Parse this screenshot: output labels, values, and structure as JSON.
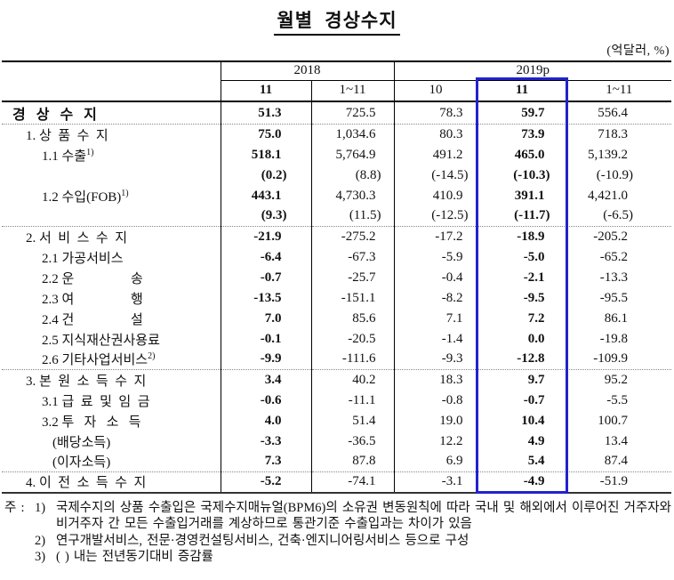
{
  "title": "월별 경상수지",
  "unit_label": "(억달러, %)",
  "colors": {
    "highlight_box": "#2222cc",
    "text": "#111111"
  },
  "table": {
    "col_groups": [
      {
        "label": "2018",
        "cols": [
          "11",
          "1~11"
        ]
      },
      {
        "label": "2019p",
        "cols": [
          "10",
          "11",
          "1~11"
        ]
      }
    ],
    "highlighted_column": "2019p 11",
    "rows": [
      {
        "label": "경   상   수   지",
        "sup": "",
        "indent": 0,
        "bold": true,
        "divider": false,
        "values": [
          "51.3",
          "725.5",
          "78.3",
          "59.7",
          "556.4"
        ]
      },
      {
        "label": "1. 상  품  수  지",
        "sup": "",
        "indent": 1,
        "bold": false,
        "divider": true,
        "values": [
          "75.0",
          "1,034.6",
          "80.3",
          "73.9",
          "718.3"
        ]
      },
      {
        "label": "1.1 수출",
        "sup": "1)",
        "indent": 2,
        "bold": false,
        "divider": false,
        "values": [
          "518.1",
          "5,764.9",
          "491.2",
          "465.0",
          "5,139.2"
        ]
      },
      {
        "label": "",
        "sup": "",
        "indent": 2,
        "bold": false,
        "divider": false,
        "values": [
          "(0.2)",
          "(8.8)",
          "(-14.5)",
          "(-10.3)",
          "(-10.9)"
        ]
      },
      {
        "label": "1.2 수입(FOB)",
        "sup": "1)",
        "indent": 2,
        "bold": false,
        "divider": false,
        "values": [
          "443.1",
          "4,730.3",
          "410.9",
          "391.1",
          "4,421.0"
        ]
      },
      {
        "label": "",
        "sup": "",
        "indent": 2,
        "bold": false,
        "divider": false,
        "values": [
          "(9.3)",
          "(11.5)",
          "(-12.5)",
          "(-11.7)",
          "(-6.5)"
        ]
      },
      {
        "label": "2. 서  비  스  수  지",
        "sup": "",
        "indent": 1,
        "bold": false,
        "divider": true,
        "values": [
          "-21.9",
          "-275.2",
          "-17.2",
          "-18.9",
          "-205.2"
        ]
      },
      {
        "label": "2.1 가공서비스",
        "sup": "",
        "indent": 2,
        "bold": false,
        "divider": false,
        "values": [
          "-6.4",
          "-67.3",
          "-5.9",
          "-5.0",
          "-65.2"
        ]
      },
      {
        "label": "2.2 운                 송",
        "sup": "",
        "indent": 2,
        "bold": false,
        "divider": false,
        "values": [
          "-0.7",
          "-25.7",
          "-0.4",
          "-2.1",
          "-13.3"
        ]
      },
      {
        "label": "2.3 여                 행",
        "sup": "",
        "indent": 2,
        "bold": false,
        "divider": false,
        "values": [
          "-13.5",
          "-151.1",
          "-8.2",
          "-9.5",
          "-95.5"
        ]
      },
      {
        "label": "2.4 건                 설",
        "sup": "",
        "indent": 2,
        "bold": false,
        "divider": false,
        "values": [
          "7.0",
          "85.6",
          "7.1",
          "7.2",
          "86.1"
        ]
      },
      {
        "label": "2.5 지식재산권사용료",
        "sup": "",
        "indent": 2,
        "bold": false,
        "divider": false,
        "values": [
          "-0.1",
          "-20.5",
          "-1.4",
          "0.0",
          "-19.8"
        ]
      },
      {
        "label": "2.6 기타사업서비스",
        "sup": "2)",
        "indent": 2,
        "bold": false,
        "divider": false,
        "values": [
          "-9.9",
          "-111.6",
          "-9.3",
          "-12.8",
          "-109.9"
        ]
      },
      {
        "label": "3. 본  원  소  득  수  지",
        "sup": "",
        "indent": 1,
        "bold": false,
        "divider": true,
        "values": [
          "3.4",
          "40.2",
          "18.3",
          "9.7",
          "95.2"
        ]
      },
      {
        "label": "3.1 급  료  및  임  금",
        "sup": "",
        "indent": 2,
        "bold": false,
        "divider": false,
        "values": [
          "-0.6",
          "-11.1",
          "-0.8",
          "-0.7",
          "-5.5"
        ]
      },
      {
        "label": "3.2 투   자   소   득",
        "sup": "",
        "indent": 2,
        "bold": false,
        "divider": false,
        "values": [
          "4.0",
          "51.4",
          "19.0",
          "10.4",
          "100.7"
        ]
      },
      {
        "label": "(배당소득)",
        "sup": "",
        "indent": 3,
        "bold": false,
        "divider": false,
        "values": [
          "-3.3",
          "-36.5",
          "12.2",
          "4.9",
          "13.4"
        ]
      },
      {
        "label": "(이자소득)",
        "sup": "",
        "indent": 3,
        "bold": false,
        "divider": false,
        "values": [
          "7.3",
          "87.8",
          "6.9",
          "5.4",
          "87.4"
        ]
      },
      {
        "label": "4. 이  전  소  득  수  지",
        "sup": "",
        "indent": 1,
        "bold": false,
        "divider": true,
        "values": [
          "-5.2",
          "-74.1",
          "-3.1",
          "-4.9",
          "-51.9"
        ]
      }
    ]
  },
  "footnotes": {
    "prefix": "주 :",
    "items": [
      {
        "num": "1)",
        "text": "국제수지의 상품 수출입은 국제수지매뉴얼(BPM6)의 소유권 변동원칙에 따라 국내 및 해외에서 이루어진 거주자와 비거주자 간 모든 수출입거래를 계상하므로 통관기준 수출입과는 차이가 있음"
      },
      {
        "num": "2)",
        "text": "연구개발서비스, 전문·경영컨설팅서비스, 건축·엔지니어링서비스 등으로 구성"
      },
      {
        "num": "3)",
        "text": "( ) 내는 전년동기대비 증감률"
      }
    ]
  }
}
